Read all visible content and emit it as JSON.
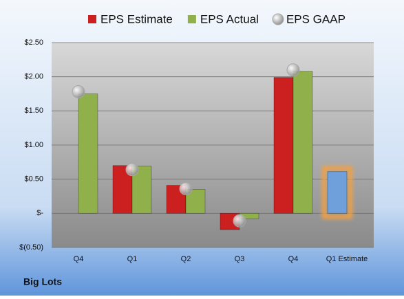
{
  "chart_data": {
    "type": "bar",
    "categories": [
      "Q4",
      "Q1",
      "Q2",
      "Q3",
      "Q4",
      "Q1 Estimate"
    ],
    "series": [
      {
        "name": "EPS Estimate",
        "color": "#cc2020",
        "values": [
          null,
          0.7,
          0.41,
          -0.24,
          1.99,
          null
        ]
      },
      {
        "name": "EPS Actual",
        "color": "#8fb04a",
        "values": [
          1.75,
          0.69,
          0.35,
          -0.08,
          2.08,
          null
        ]
      },
      {
        "name": "EPS GAAP",
        "color": "#a8a8a8",
        "type": "scatter",
        "values": [
          1.78,
          0.64,
          0.36,
          -0.11,
          2.1,
          null
        ]
      }
    ],
    "forecast_series": {
      "color": "#6fa0dc",
      "glow": "#f4a040",
      "values": [
        null,
        null,
        null,
        null,
        null,
        0.61
      ]
    },
    "ylim": [
      -0.5,
      2.5
    ],
    "yticks": [
      {
        "value": 2.5,
        "label": "$2.50"
      },
      {
        "value": 2.0,
        "label": "$2.00"
      },
      {
        "value": 1.5,
        "label": "$1.50"
      },
      {
        "value": 1.0,
        "label": "$1.00"
      },
      {
        "value": 0.5,
        "label": "$0.50"
      },
      {
        "value": 0,
        "label": "$-"
      },
      {
        "value": -0.5,
        "label": "$(0.50)"
      }
    ],
    "grid": true,
    "footer": "Big Lots"
  }
}
